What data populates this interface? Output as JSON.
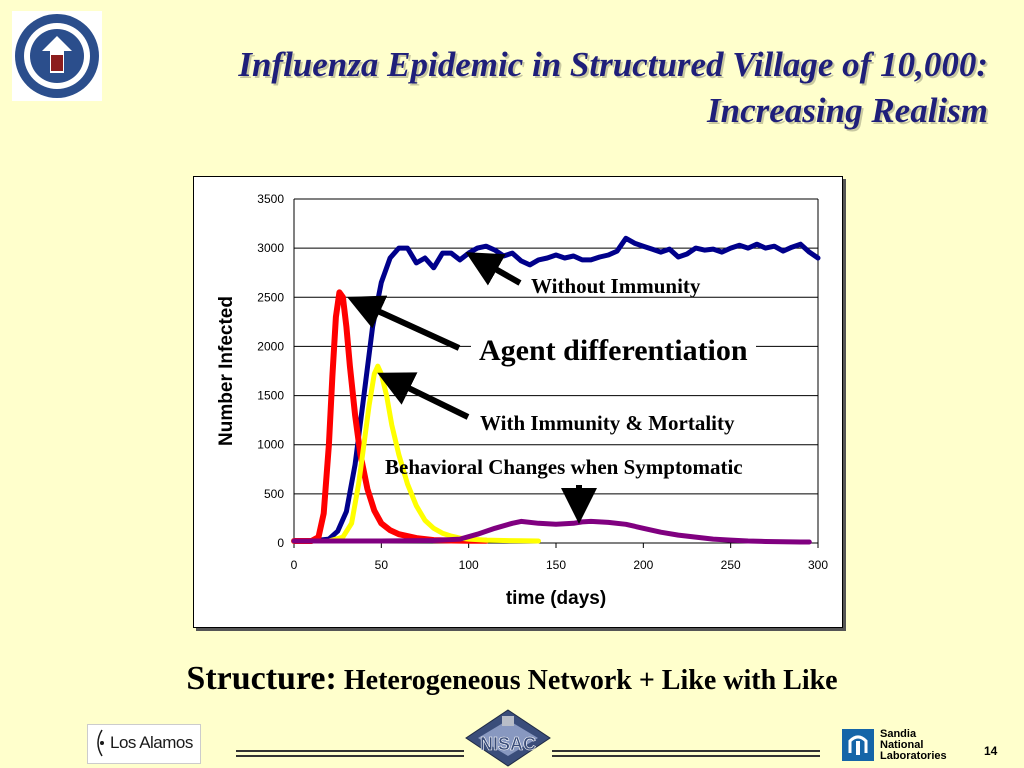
{
  "slide": {
    "title_line1": "Influenza Epidemic in Structured Village of 10,000:",
    "title_line2": "Increasing Realism",
    "structure_label": "Structure:",
    "structure_text": " Heterogeneous Network + Like with Like",
    "page_number": "14",
    "seal_icon": "dhs-seal-icon",
    "los_alamos": "Los Alamos",
    "nisac": "NISAC",
    "sandia_lines": [
      "Sandia",
      "National",
      "Laboratories"
    ],
    "colors": {
      "background": "#FFFFCC",
      "title": "#1F1F7A"
    }
  },
  "annotations": {
    "without_immunity": "Without  Immunity",
    "agent_differentiation": "Agent differentiation",
    "with_immunity": "With Immunity & Mortality",
    "behavioral": "Behavioral Changes when Symptomatic"
  },
  "chart_data": {
    "type": "line",
    "xlabel": "time (days)",
    "ylabel": "Number Infected",
    "xlim": [
      0,
      300
    ],
    "ylim": [
      0,
      3500
    ],
    "xticks": [
      0,
      50,
      100,
      150,
      200,
      250,
      300
    ],
    "yticks": [
      0,
      500,
      1000,
      1500,
      2000,
      2500,
      3000,
      3500
    ],
    "grid": "horizontal",
    "series": [
      {
        "color": "#00008B",
        "points": [
          [
            0,
            20
          ],
          [
            10,
            20
          ],
          [
            20,
            40
          ],
          [
            25,
            120
          ],
          [
            30,
            320
          ],
          [
            35,
            800
          ],
          [
            40,
            1500
          ],
          [
            45,
            2200
          ],
          [
            50,
            2650
          ],
          [
            55,
            2900
          ],
          [
            60,
            3000
          ],
          [
            65,
            3000
          ],
          [
            70,
            2850
          ],
          [
            75,
            2900
          ],
          [
            80,
            2800
          ],
          [
            85,
            2950
          ],
          [
            90,
            2950
          ],
          [
            95,
            2880
          ],
          [
            100,
            2950
          ],
          [
            105,
            3000
          ],
          [
            110,
            3020
          ],
          [
            115,
            2980
          ],
          [
            120,
            2920
          ],
          [
            125,
            2950
          ],
          [
            130,
            2870
          ],
          [
            135,
            2830
          ],
          [
            140,
            2880
          ],
          [
            145,
            2900
          ],
          [
            150,
            2930
          ],
          [
            155,
            2900
          ],
          [
            160,
            2920
          ],
          [
            165,
            2880
          ],
          [
            170,
            2880
          ],
          [
            175,
            2910
          ],
          [
            180,
            2930
          ],
          [
            185,
            2970
          ],
          [
            190,
            3100
          ],
          [
            195,
            3050
          ],
          [
            200,
            3020
          ],
          [
            205,
            2990
          ],
          [
            210,
            2960
          ],
          [
            215,
            2990
          ],
          [
            220,
            2910
          ],
          [
            225,
            2940
          ],
          [
            230,
            3000
          ],
          [
            235,
            2980
          ],
          [
            240,
            2990
          ],
          [
            245,
            2960
          ],
          [
            250,
            3000
          ],
          [
            255,
            3030
          ],
          [
            260,
            3000
          ],
          [
            265,
            3040
          ],
          [
            270,
            3000
          ],
          [
            275,
            3020
          ],
          [
            280,
            2970
          ],
          [
            285,
            3010
          ],
          [
            290,
            3040
          ],
          [
            295,
            2960
          ],
          [
            300,
            2900
          ]
        ]
      },
      {
        "color": "#FF0000",
        "points": [
          [
            0,
            20
          ],
          [
            10,
            20
          ],
          [
            14,
            60
          ],
          [
            17,
            300
          ],
          [
            20,
            1000
          ],
          [
            22,
            1700
          ],
          [
            24,
            2300
          ],
          [
            26,
            2550
          ],
          [
            28,
            2500
          ],
          [
            30,
            2200
          ],
          [
            32,
            1800
          ],
          [
            35,
            1300
          ],
          [
            38,
            900
          ],
          [
            42,
            550
          ],
          [
            46,
            330
          ],
          [
            50,
            200
          ],
          [
            55,
            130
          ],
          [
            60,
            90
          ],
          [
            70,
            50
          ],
          [
            80,
            30
          ],
          [
            90,
            25
          ],
          [
            100,
            22
          ],
          [
            110,
            22
          ]
        ]
      },
      {
        "color": "#FFFF00",
        "points": [
          [
            0,
            20
          ],
          [
            20,
            20
          ],
          [
            28,
            60
          ],
          [
            33,
            200
          ],
          [
            37,
            600
          ],
          [
            40,
            1000
          ],
          [
            43,
            1400
          ],
          [
            46,
            1720
          ],
          [
            48,
            1800
          ],
          [
            50,
            1720
          ],
          [
            53,
            1500
          ],
          [
            56,
            1200
          ],
          [
            60,
            900
          ],
          [
            65,
            600
          ],
          [
            70,
            380
          ],
          [
            75,
            230
          ],
          [
            80,
            150
          ],
          [
            85,
            100
          ],
          [
            90,
            70
          ],
          [
            95,
            50
          ],
          [
            100,
            40
          ],
          [
            110,
            30
          ],
          [
            120,
            25
          ],
          [
            130,
            22
          ],
          [
            140,
            20
          ]
        ]
      },
      {
        "color": "#800080",
        "points": [
          [
            0,
            20
          ],
          [
            50,
            20
          ],
          [
            80,
            25
          ],
          [
            95,
            40
          ],
          [
            105,
            90
          ],
          [
            115,
            150
          ],
          [
            125,
            200
          ],
          [
            130,
            220
          ],
          [
            140,
            200
          ],
          [
            150,
            190
          ],
          [
            160,
            200
          ],
          [
            165,
            215
          ],
          [
            170,
            220
          ],
          [
            180,
            210
          ],
          [
            190,
            190
          ],
          [
            200,
            150
          ],
          [
            210,
            110
          ],
          [
            220,
            80
          ],
          [
            230,
            60
          ],
          [
            240,
            40
          ],
          [
            250,
            30
          ],
          [
            260,
            20
          ],
          [
            270,
            15
          ],
          [
            280,
            12
          ],
          [
            290,
            10
          ],
          [
            295,
            10
          ]
        ]
      }
    ]
  }
}
